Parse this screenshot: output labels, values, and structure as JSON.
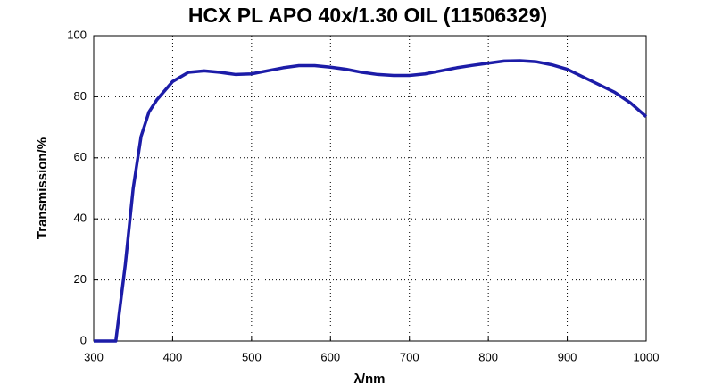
{
  "chart_data": {
    "type": "line",
    "title": "HCX PL APO 40x/1.30 OIL (11506329)",
    "x_label": "λ/nm",
    "y_label": "Transmission/%",
    "x": [
      300,
      328,
      340,
      350,
      360,
      370,
      380,
      400,
      420,
      440,
      460,
      480,
      500,
      520,
      540,
      560,
      580,
      600,
      620,
      640,
      660,
      680,
      700,
      720,
      740,
      760,
      780,
      800,
      820,
      840,
      860,
      880,
      900,
      920,
      940,
      960,
      980,
      1000
    ],
    "series": [
      {
        "name": "Transmission",
        "color": "#1c1ca8",
        "values": [
          0,
          0,
          25,
          50,
          67,
          75,
          79,
          85,
          88,
          88.5,
          88,
          87.3,
          87.5,
          88.5,
          89.5,
          90.2,
          90.2,
          89.7,
          89,
          88,
          87.3,
          87,
          87,
          87.5,
          88.5,
          89.5,
          90.3,
          91,
          91.7,
          91.8,
          91.5,
          90.5,
          89,
          86.5,
          84,
          81.5,
          78,
          73.5
        ]
      }
    ],
    "xlim": [
      300,
      1000
    ],
    "ylim": [
      0,
      100
    ],
    "xticks": [
      300,
      400,
      500,
      600,
      700,
      800,
      900,
      1000
    ],
    "yticks": [
      0,
      20,
      40,
      60,
      80,
      100
    ],
    "grid": true
  }
}
